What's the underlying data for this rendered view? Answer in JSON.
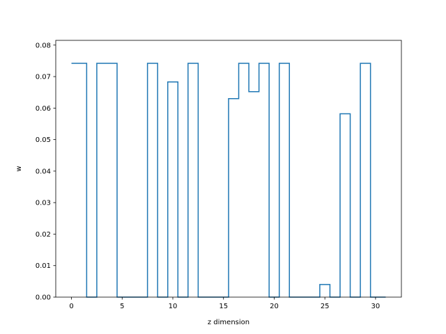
{
  "chart_data": {
    "type": "line",
    "drawstyle": "steps-mid",
    "xlabel": "z dimension",
    "ylabel": "w",
    "xlim": [
      -1.55,
      32.55
    ],
    "ylim": [
      0,
      0.0815
    ],
    "xticks": [
      0,
      5,
      10,
      15,
      20,
      25,
      30
    ],
    "yticks": [
      0.0,
      0.01,
      0.02,
      0.03,
      0.04,
      0.05,
      0.06,
      0.07,
      0.08
    ],
    "grid": false,
    "line_color": "#1f77b4",
    "series": [
      {
        "x": [
          0,
          1,
          2,
          3,
          4,
          5,
          6,
          7,
          8,
          9,
          10,
          11,
          12,
          13,
          14,
          15,
          16,
          17,
          18,
          19,
          20,
          21,
          22,
          23,
          24,
          25,
          26,
          27,
          28,
          29,
          30,
          31
        ],
        "values": [
          0.0742,
          0.0742,
          0,
          0.0742,
          0.0742,
          0,
          0,
          0,
          0.0742,
          0,
          0.0683,
          0,
          0.0742,
          0,
          0,
          0,
          0.063,
          0.0742,
          0.0652,
          0.0742,
          0,
          0.0742,
          0,
          0,
          0,
          0.004,
          0,
          0.0582,
          0,
          0.0742,
          0,
          0
        ]
      }
    ]
  }
}
